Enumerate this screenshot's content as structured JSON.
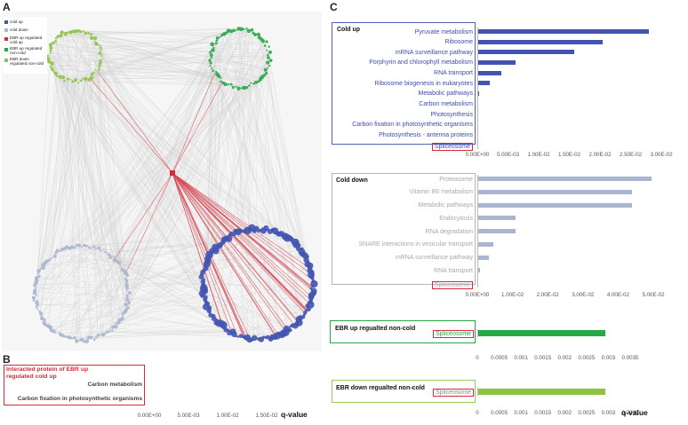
{
  "panel_letters": {
    "a": "A",
    "b": "B",
    "c": "C"
  },
  "colors": {
    "cold_up": "#4354b0",
    "cold_down": "#aab5cf",
    "ebr_up_cold_up": "#d82a3a",
    "ebr_up_non_cold": "#25a848",
    "ebr_down_non_cold": "#8cc342",
    "edge_gray": "#cfcfcf",
    "edge_red": "#d64a55"
  },
  "network_legend": [
    {
      "label": "cold up",
      "color_key": "cold_up"
    },
    {
      "label": "cold down",
      "color_key": "cold_down"
    },
    {
      "label": "EBR up regulated cold up",
      "color_key": "ebr_up_cold_up"
    },
    {
      "label": "EBR up regulated non-cold",
      "color_key": "ebr_up_non_cold"
    },
    {
      "label": "EBR down regulated non-cold",
      "color_key": "ebr_down_non_cold"
    }
  ],
  "q_value_label": "q-value",
  "chart_data": [
    {
      "id": "panel-b",
      "type": "bar",
      "title": "Interacted protein of EBR up regulated cold up",
      "categories": [
        "Carbon metabolism",
        "Carbon fixation in photosynthetic organisms"
      ],
      "values": [
        0,
        0
      ],
      "xlim": [
        0,
        0.015
      ],
      "ticks": [
        "0.00E+00",
        "5.00E-03",
        "1.00E-02",
        "1.50E-02"
      ]
    },
    {
      "id": "cold-up",
      "type": "bar",
      "title": "Cold up",
      "categories": [
        "Pyruvate metabolism",
        "Ribosome",
        "mRNA surveillance pathway",
        "Porphyrin and chlorophyll metabolism",
        "RNA transport",
        "Ribosome biogenesis in eukaryotes",
        "Metabolic pathways",
        "Carbon metabolism",
        "Photosynthesis",
        "Carbon fixation in photosynthetic organisms",
        "Photosynthesis - antenna proteins",
        "Spliceosome"
      ],
      "values": [
        0.0278,
        0.0203,
        0.0157,
        0.0061,
        0.0037,
        0.0019,
        0.0001,
        0,
        0,
        0,
        0,
        0
      ],
      "xlim": [
        0,
        0.03
      ],
      "ticks": [
        "0.00E+00",
        "5.00E-03",
        "1.00E-02",
        "1.50E-02",
        "2.00E-02",
        "2.50E-02",
        "3.00E-02"
      ]
    },
    {
      "id": "cold-down",
      "type": "bar",
      "title": "Cold down",
      "categories": [
        "Proteasome",
        "Vitamin B6 metabolism",
        "Metabolic pathways",
        "Endocytosis",
        "RNA degradation",
        "SNARE interactions in vesicular transport",
        "mRNA surveillance pathway",
        "RNA transport",
        "Spliceosome"
      ],
      "values": [
        0.0493,
        0.0437,
        0.0437,
        0.0107,
        0.0107,
        0.0044,
        0.0031,
        0.0006,
        0
      ],
      "xlim": [
        0,
        0.05
      ],
      "ticks": [
        "0.00E+00",
        "1.00E-02",
        "2.00E-02",
        "3.00E-02",
        "4.00E-02",
        "5.00E-02"
      ]
    },
    {
      "id": "ebr-up-non-cold",
      "type": "bar",
      "title": "EBR up regualted non-cold",
      "categories": [
        "Spliceosome"
      ],
      "values": [
        0.0029
      ],
      "xlim": [
        0,
        0.0035
      ],
      "ticks": [
        "0",
        "0.0005",
        "0.001",
        "0.0015",
        "0.002",
        "0.0025",
        "0.003",
        "0.0035"
      ]
    },
    {
      "id": "ebr-down-non-cold",
      "type": "bar",
      "title": "EBR down regualted non-cold",
      "categories": [
        "Spliceosome"
      ],
      "values": [
        0.0029
      ],
      "xlim": [
        0,
        0.0035
      ],
      "ticks": [
        "0",
        "0.0005",
        "0.001",
        "0.0015",
        "0.002",
        "0.0025",
        "0.003",
        "0.0035"
      ]
    }
  ]
}
